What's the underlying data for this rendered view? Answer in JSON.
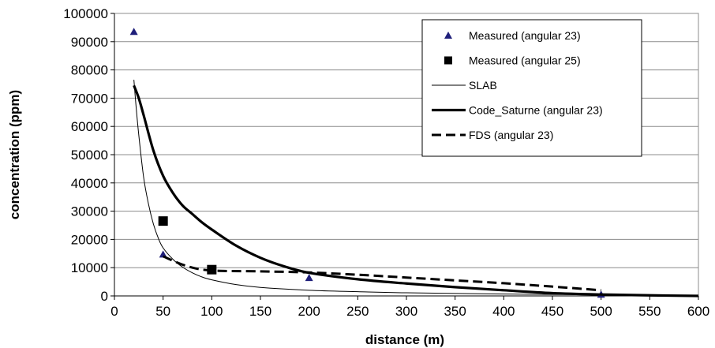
{
  "chart_data": {
    "type": "line",
    "xlabel": "distance  (m)",
    "ylabel": "concentration  (ppm)",
    "xlim": [
      0,
      600
    ],
    "ylim": [
      0,
      100000
    ],
    "x_ticks": [
      "0",
      "50",
      "100",
      "150",
      "200",
      "250",
      "300",
      "350",
      "400",
      "450",
      "500",
      "550",
      "600"
    ],
    "y_ticks": [
      "0",
      "10000",
      "20000",
      "30000",
      "40000",
      "50000",
      "60000",
      "70000",
      "80000",
      "90000",
      "100000"
    ],
    "grid": "horizontal",
    "legend_position": "top-right",
    "series": [
      {
        "name": "Measured (angular 23)",
        "style": "triangle-markers",
        "color": "#1f1f7a",
        "x": [
          20,
          50,
          200,
          500
        ],
        "y": [
          93500,
          14700,
          6400,
          500
        ]
      },
      {
        "name": "Measured (angular 25)",
        "style": "square-markers",
        "color": "#000000",
        "x": [
          50,
          100
        ],
        "y": [
          26500,
          9300
        ]
      },
      {
        "name": "SLAB",
        "style": "thin-line",
        "color": "#000000",
        "x": [
          20,
          22,
          25,
          30,
          35,
          40,
          45,
          50,
          60,
          70,
          80,
          90,
          100,
          125,
          150,
          200,
          250,
          300,
          400,
          500,
          600
        ],
        "y": [
          76500,
          68000,
          57000,
          42000,
          32500,
          25500,
          20500,
          17000,
          13000,
          10200,
          8200,
          6700,
          5700,
          4000,
          3000,
          2000,
          1500,
          1100,
          650,
          400,
          200
        ]
      },
      {
        "name": "Code_Saturne (angular 23)",
        "style": "thick-line",
        "color": "#000000",
        "x": [
          20,
          25,
          30,
          40,
          50,
          60,
          70,
          80,
          90,
          100,
          125,
          150,
          175,
          200,
          250,
          300,
          350,
          400,
          450,
          500,
          550,
          600
        ],
        "y": [
          74500,
          70000,
          64000,
          51500,
          42500,
          36500,
          32000,
          29000,
          26000,
          23500,
          17800,
          13500,
          10400,
          8200,
          5900,
          4400,
          3100,
          2000,
          1000,
          500,
          200,
          0
        ]
      },
      {
        "name": "FDS (angular 23)",
        "style": "dashed-line",
        "color": "#000000",
        "x": [
          50,
          75,
          100,
          150,
          200,
          250,
          300,
          350,
          400,
          450,
          500
        ],
        "y": [
          14000,
          10500,
          9000,
          8700,
          8300,
          7500,
          6500,
          5500,
          4500,
          3300,
          2000
        ]
      }
    ]
  }
}
